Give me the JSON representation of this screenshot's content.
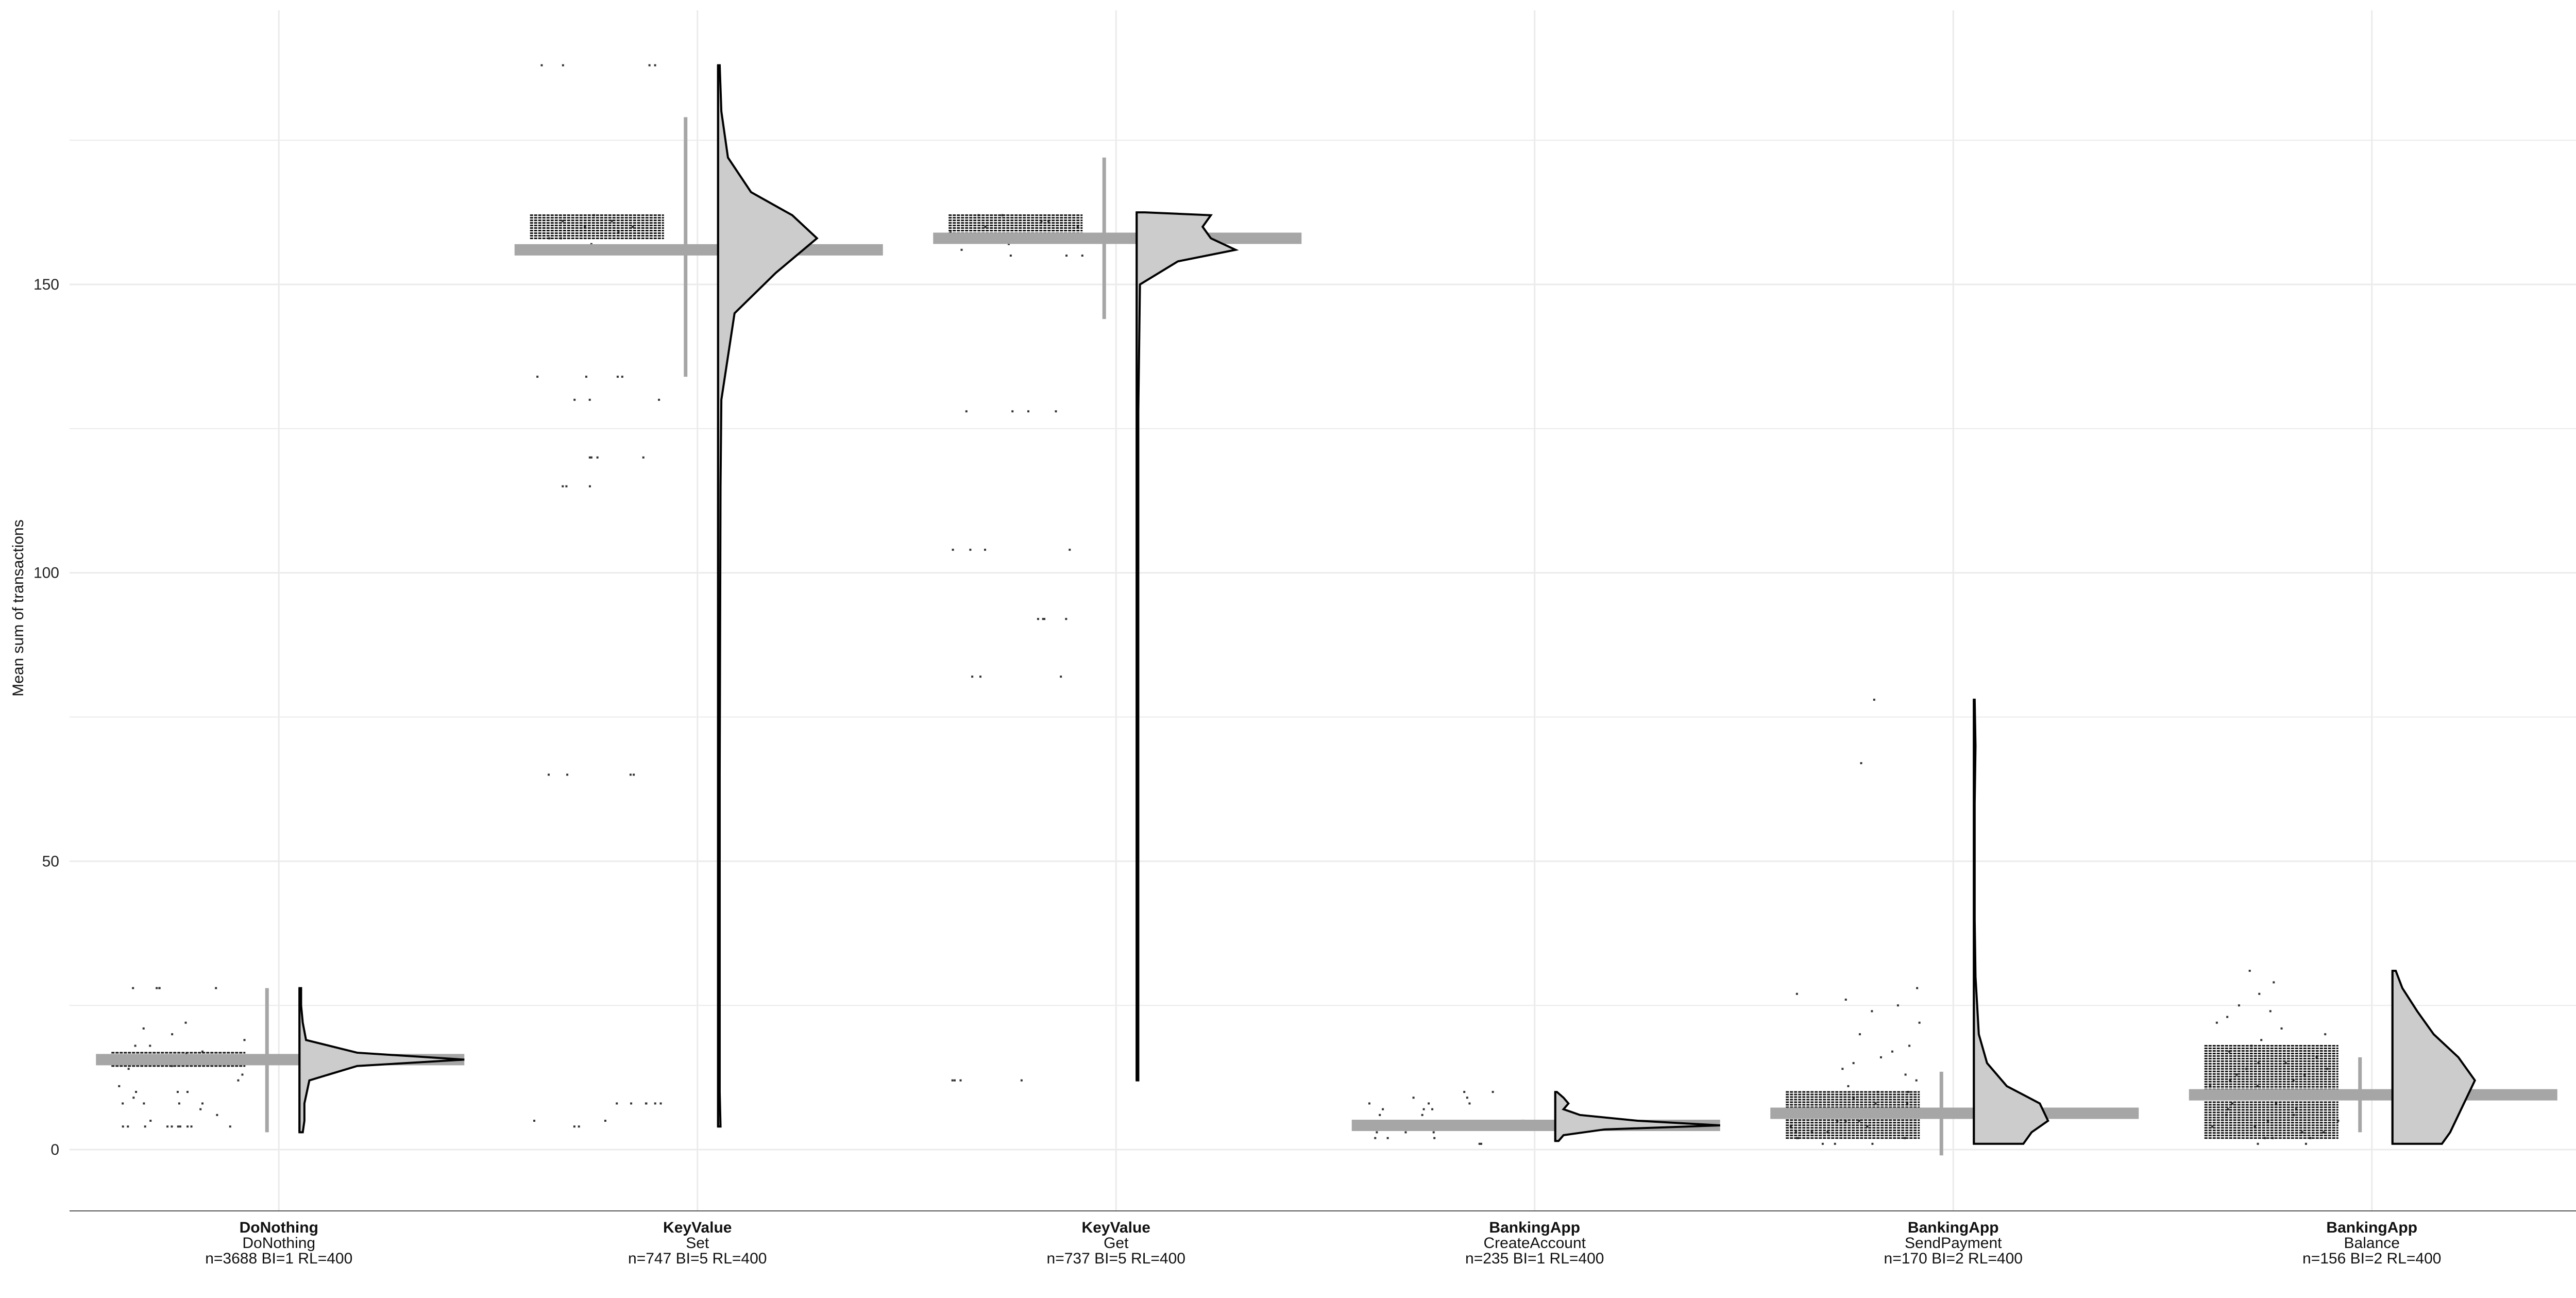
{
  "chart_data": {
    "type": "scatter",
    "title": "",
    "xlabel": "",
    "ylabel": "Mean sum of transactions",
    "ylim": [
      -10,
      197
    ],
    "yticks": [
      0,
      50,
      100,
      150
    ],
    "grid": true,
    "legend": "none",
    "colors": {
      "summary": "#a6a6a6",
      "points": "#333333",
      "density_fill": "#cccccc",
      "density_line": "#000000",
      "grid": "#ebebeb"
    },
    "categories": [
      {
        "title": "DoNothing",
        "subtitle": "DoNothing",
        "stats": "n=3688 BI=1 RL=400",
        "mean": 15.6,
        "ci": [
          3,
          28
        ],
        "dense": [
          14.5,
          16.8
        ],
        "points": [
          4,
          4,
          4,
          4,
          4,
          4,
          4,
          4,
          4,
          4,
          5,
          6,
          7,
          8,
          8,
          8,
          8,
          9,
          10,
          10,
          10,
          11,
          12,
          13,
          14,
          14.5,
          15,
          15.5,
          16,
          16.5,
          17,
          18,
          18,
          19,
          20,
          21,
          22,
          28,
          28,
          28,
          28,
          28
        ],
        "density": [
          [
            3,
            0.02
          ],
          [
            5,
            0.03
          ],
          [
            8,
            0.03
          ],
          [
            12,
            0.06
          ],
          [
            14.5,
            0.35
          ],
          [
            15.6,
            1.0
          ],
          [
            16.8,
            0.35
          ],
          [
            19,
            0.04
          ],
          [
            22,
            0.02
          ],
          [
            25,
            0.01
          ],
          [
            28,
            0.01
          ]
        ],
        "dmax": 28
      },
      {
        "title": "KeyValue",
        "subtitle": "Set",
        "stats": "n=747 BI=5 RL=400",
        "mean": 156,
        "ci": [
          134,
          179
        ],
        "dense": [
          158,
          162
        ],
        "points": [
          188,
          188,
          188,
          188,
          162,
          161,
          161,
          160,
          160,
          159,
          158,
          158,
          157,
          156,
          134,
          134,
          134,
          134,
          130,
          130,
          130,
          120,
          120,
          120,
          120,
          115,
          115,
          115,
          65,
          65,
          65,
          65,
          8,
          8,
          8,
          8,
          8,
          8,
          5,
          5,
          4,
          4
        ],
        "density": [
          [
            4,
            0.015
          ],
          [
            10,
            0.01
          ],
          [
            65,
            0.01
          ],
          [
            115,
            0.015
          ],
          [
            130,
            0.02
          ],
          [
            145,
            0.1
          ],
          [
            152,
            0.35
          ],
          [
            158,
            0.6
          ],
          [
            162,
            0.45
          ],
          [
            166,
            0.2
          ],
          [
            172,
            0.06
          ],
          [
            180,
            0.02
          ],
          [
            188,
            0.01
          ]
        ],
        "dmax": 188
      },
      {
        "title": "KeyValue",
        "subtitle": "Get",
        "stats": "n=737 BI=5 RL=400",
        "mean": 158,
        "ci": [
          144,
          172
        ],
        "dense": [
          158,
          162
        ],
        "points": [
          162,
          162,
          161,
          161,
          160,
          160,
          159,
          158,
          158,
          157,
          156,
          155,
          155,
          155,
          128,
          128,
          128,
          128,
          104,
          104,
          104,
          104,
          92,
          92,
          92,
          92,
          82,
          82,
          82,
          12,
          12,
          12,
          12
        ],
        "density": [
          [
            12,
            0.01
          ],
          [
            80,
            0.01
          ],
          [
            128,
            0.01
          ],
          [
            150,
            0.02
          ],
          [
            154,
            0.25
          ],
          [
            156,
            0.6
          ],
          [
            158,
            0.45
          ],
          [
            160,
            0.4
          ],
          [
            162,
            0.45
          ],
          [
            162.5,
            0.05
          ]
        ],
        "dmax": 162.5
      },
      {
        "title": "BankingApp",
        "subtitle": "CreateAccount",
        "stats": "n=235 BI=1 RL=400",
        "mean": 4.2,
        "ci": [
          3.5,
          5.2
        ],
        "dense": [
          3.6,
          4.8
        ],
        "points": [
          1,
          1,
          2,
          2,
          2,
          3,
          3,
          3,
          4,
          4,
          4,
          4,
          4,
          5,
          5,
          5,
          6,
          6,
          7,
          7,
          7,
          8,
          8,
          8,
          9,
          9,
          10,
          10
        ],
        "density": [
          [
            1.5,
            0.02
          ],
          [
            2.5,
            0.05
          ],
          [
            3.5,
            0.3
          ],
          [
            4.2,
            1.0
          ],
          [
            5,
            0.5
          ],
          [
            6,
            0.15
          ],
          [
            7,
            0.05
          ],
          [
            8,
            0.08
          ],
          [
            9,
            0.05
          ],
          [
            10,
            0.01
          ]
        ],
        "dmax": 10
      },
      {
        "title": "BankingApp",
        "subtitle": "SendPayment",
        "stats": "n=170 BI=2 RL=400",
        "mean": 6.3,
        "ci": [
          -1,
          13.5
        ],
        "dense": [
          2,
          10
        ],
        "points": [
          1,
          1,
          1,
          2,
          2,
          2,
          3,
          3,
          3,
          4,
          4,
          5,
          5,
          5,
          6,
          6,
          7,
          7,
          8,
          8,
          9,
          10,
          10,
          11,
          12,
          13,
          14,
          15,
          16,
          17,
          18,
          20,
          22,
          24,
          25,
          26,
          27,
          28,
          67,
          78
        ],
        "density": [
          [
            1,
            0.3
          ],
          [
            3,
            0.35
          ],
          [
            5,
            0.45
          ],
          [
            8,
            0.4
          ],
          [
            11,
            0.2
          ],
          [
            15,
            0.08
          ],
          [
            20,
            0.03
          ],
          [
            25,
            0.02
          ],
          [
            30,
            0.01
          ],
          [
            40,
            0.005
          ],
          [
            60,
            0.005
          ],
          [
            70,
            0.01
          ],
          [
            78,
            0.005
          ]
        ],
        "dmax": 78
      },
      {
        "title": "BankingApp",
        "subtitle": "Balance",
        "stats": "n=156 BI=2 RL=400",
        "mean": 9.5,
        "ci": [
          3,
          16
        ],
        "dense": [
          2,
          18
        ],
        "points": [
          1,
          1,
          2,
          2,
          2,
          3,
          3,
          4,
          4,
          5,
          5,
          6,
          6,
          7,
          7,
          8,
          8,
          9,
          9,
          10,
          10,
          11,
          11,
          12,
          12,
          13,
          13,
          14,
          14,
          15,
          15,
          16,
          17,
          18,
          19,
          20,
          21,
          22,
          23,
          24,
          25,
          27,
          29,
          31
        ],
        "density": [
          [
            1,
            0.3
          ],
          [
            3,
            0.35
          ],
          [
            6,
            0.4
          ],
          [
            9,
            0.45
          ],
          [
            12,
            0.5
          ],
          [
            16,
            0.4
          ],
          [
            20,
            0.25
          ],
          [
            24,
            0.15
          ],
          [
            28,
            0.06
          ],
          [
            31,
            0.02
          ]
        ],
        "dmax": 31
      }
    ]
  }
}
